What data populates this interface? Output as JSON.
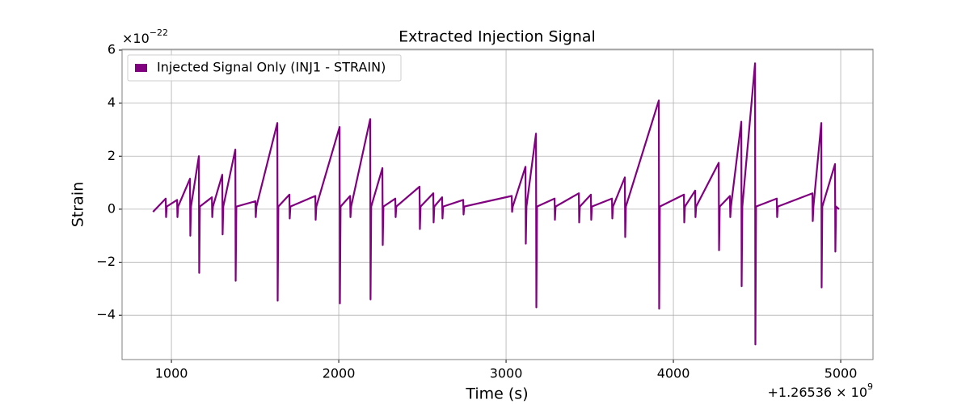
{
  "chart_data": {
    "type": "line",
    "title": "Extracted Injection Signal",
    "x_label": "Time (s)",
    "y_label": "Strain",
    "x_offset": {
      "text": "+1.26536 × 10",
      "exponent": "9"
    },
    "y_multiplier": {
      "text": "×10",
      "exponent": "−22"
    },
    "xlim": [
      705,
      5193
    ],
    "ylim": [
      -5.67,
      6.03
    ],
    "xticks": [
      1000,
      2000,
      3000,
      4000,
      5000
    ],
    "yticks": [
      {
        "value": -4,
        "label": "−4"
      },
      {
        "value": -2,
        "label": "−2"
      },
      0,
      2,
      4,
      6
    ],
    "grid": true,
    "legend": "upper left",
    "series": [
      {
        "name": "Injected Signal Only (INJ1 - STRAIN)",
        "color": "#800080",
        "x": [
          890,
          966,
          968,
          972,
          1034,
          1036,
          1040,
          1111,
          1113,
          1117,
          1164,
          1166,
          1170,
          1242,
          1244,
          1248,
          1304,
          1306,
          1310,
          1382,
          1384,
          1388,
          1502,
          1504,
          1508,
          1633,
          1635,
          1639,
          1705,
          1707,
          1711,
          1860,
          1862,
          1866,
          2005,
          2007,
          2011,
          2068,
          2070,
          2074,
          2188,
          2190,
          2194,
          2261,
          2263,
          2267,
          2338,
          2340,
          2344,
          2483,
          2485,
          2489,
          2565,
          2567,
          2571,
          2618,
          2620,
          2624,
          2744,
          2746,
          2750,
          3034,
          3036,
          3040,
          3116,
          3118,
          3122,
          3179,
          3181,
          3185,
          3290,
          3292,
          3296,
          3435,
          3437,
          3441,
          3507,
          3509,
          3513,
          3633,
          3635,
          3639,
          3710,
          3712,
          3716,
          3913,
          3915,
          3919,
          4063,
          4065,
          4069,
          4130,
          4132,
          4136,
          4271,
          4273,
          4277,
          4338,
          4340,
          4344,
          4406,
          4408,
          4412,
          4488,
          4490,
          4494,
          4618,
          4620,
          4624,
          4831,
          4833,
          4837,
          4884,
          4886,
          4890,
          4966,
          4968,
          4972,
          4990
        ],
        "values": [
          -0.1,
          0.4,
          -0.3,
          0.1,
          0.35,
          -0.3,
          0.1,
          1.15,
          -1.0,
          0.1,
          2.0,
          -2.4,
          0.1,
          0.45,
          -0.3,
          0.1,
          1.3,
          -0.95,
          0.1,
          2.25,
          -2.7,
          0.1,
          0.3,
          -0.3,
          0.1,
          3.25,
          -3.45,
          0.1,
          0.55,
          -0.35,
          0.1,
          0.5,
          -0.4,
          0.1,
          3.1,
          -3.55,
          0.1,
          0.5,
          -0.3,
          0.1,
          3.4,
          -3.4,
          0.1,
          1.55,
          -1.35,
          0.1,
          0.4,
          -0.3,
          0.1,
          0.85,
          -0.75,
          0.1,
          0.6,
          -0.5,
          0.1,
          0.45,
          -0.35,
          0.1,
          0.35,
          -0.2,
          0.1,
          0.5,
          -0.1,
          0.1,
          1.6,
          -1.3,
          0.1,
          2.85,
          -3.7,
          0.1,
          0.4,
          -0.4,
          0.1,
          0.6,
          -0.5,
          0.1,
          0.55,
          -0.4,
          0.1,
          0.4,
          -0.35,
          0.1,
          1.2,
          -1.05,
          0.1,
          4.1,
          -3.75,
          0.1,
          0.55,
          -0.5,
          0.1,
          0.7,
          -0.3,
          0.1,
          1.75,
          -1.55,
          0.1,
          0.5,
          -0.3,
          0.1,
          3.3,
          -2.9,
          0.1,
          5.5,
          -5.1,
          0.1,
          0.4,
          -0.3,
          0.1,
          0.6,
          -0.45,
          0.1,
          3.25,
          -2.95,
          0.1,
          1.7,
          -1.6,
          0.1,
          0
        ]
      }
    ]
  }
}
